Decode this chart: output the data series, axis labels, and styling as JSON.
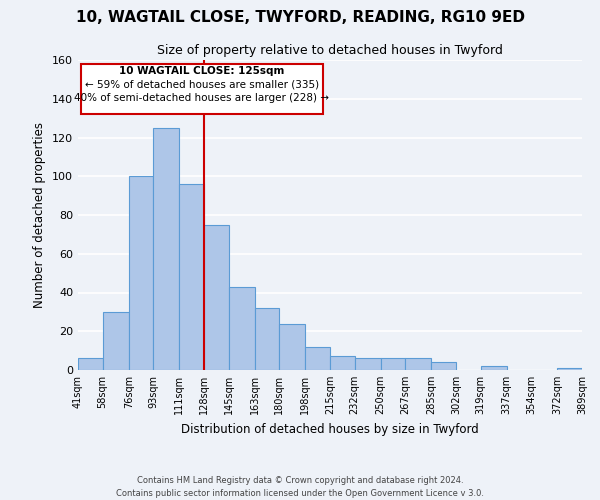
{
  "title": "10, WAGTAIL CLOSE, TWYFORD, READING, RG10 9ED",
  "subtitle": "Size of property relative to detached houses in Twyford",
  "xlabel": "Distribution of detached houses by size in Twyford",
  "ylabel": "Number of detached properties",
  "bar_edges": [
    41,
    58,
    76,
    93,
    111,
    128,
    145,
    163,
    180,
    198,
    215,
    232,
    250,
    267,
    285,
    302,
    319,
    337,
    354,
    372,
    389
  ],
  "bar_heights": [
    6,
    30,
    100,
    125,
    96,
    75,
    43,
    32,
    24,
    12,
    7,
    6,
    6,
    6,
    4,
    0,
    2,
    0,
    0,
    1
  ],
  "bar_color": "#aec6e8",
  "bar_edge_color": "#5b9bd5",
  "vline_x": 128,
  "vline_color": "#cc0000",
  "ylim": [
    0,
    160
  ],
  "annotation_title": "10 WAGTAIL CLOSE: 125sqm",
  "annotation_line1": "← 59% of detached houses are smaller (335)",
  "annotation_line2": "40% of semi-detached houses are larger (228) →",
  "annotation_box_color": "#ffffff",
  "annotation_box_edge": "#cc0000",
  "footer1": "Contains HM Land Registry data © Crown copyright and database right 2024.",
  "footer2": "Contains public sector information licensed under the Open Government Licence v 3.0.",
  "tick_labels": [
    "41sqm",
    "58sqm",
    "76sqm",
    "93sqm",
    "111sqm",
    "128sqm",
    "145sqm",
    "163sqm",
    "180sqm",
    "198sqm",
    "215sqm",
    "232sqm",
    "250sqm",
    "267sqm",
    "285sqm",
    "302sqm",
    "319sqm",
    "337sqm",
    "354sqm",
    "372sqm",
    "389sqm"
  ],
  "background_color": "#eef2f8",
  "grid_color": "#ffffff",
  "yticks": [
    0,
    20,
    40,
    60,
    80,
    100,
    120,
    140,
    160
  ]
}
